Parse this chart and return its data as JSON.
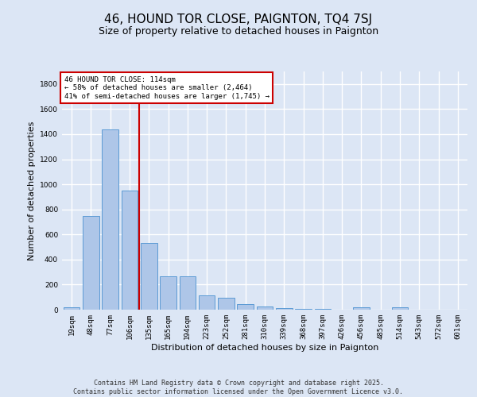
{
  "title": "46, HOUND TOR CLOSE, PAIGNTON, TQ4 7SJ",
  "subtitle": "Size of property relative to detached houses in Paignton",
  "xlabel": "Distribution of detached houses by size in Paignton",
  "ylabel": "Number of detached properties",
  "categories": [
    "19sqm",
    "48sqm",
    "77sqm",
    "106sqm",
    "135sqm",
    "165sqm",
    "194sqm",
    "223sqm",
    "252sqm",
    "281sqm",
    "310sqm",
    "339sqm",
    "368sqm",
    "397sqm",
    "426sqm",
    "456sqm",
    "485sqm",
    "514sqm",
    "543sqm",
    "572sqm",
    "601sqm"
  ],
  "values": [
    18,
    750,
    1440,
    950,
    535,
    268,
    268,
    115,
    97,
    47,
    28,
    12,
    5,
    5,
    0,
    18,
    0,
    18,
    0,
    0,
    0
  ],
  "bar_color": "#aec6e8",
  "bar_edge_color": "#5b9bd5",
  "vline_x_index": 3,
  "vline_color": "#cc0000",
  "annotation_text": "46 HOUND TOR CLOSE: 114sqm\n← 58% of detached houses are smaller (2,464)\n41% of semi-detached houses are larger (1,745) →",
  "annotation_box_color": "#ffffff",
  "annotation_box_edge_color": "#cc0000",
  "ylim": [
    0,
    1900
  ],
  "yticks": [
    0,
    200,
    400,
    600,
    800,
    1000,
    1200,
    1400,
    1600,
    1800
  ],
  "background_color": "#dce6f5",
  "grid_color": "#ffffff",
  "fig_background_color": "#dce6f5",
  "footer_text": "Contains HM Land Registry data © Crown copyright and database right 2025.\nContains public sector information licensed under the Open Government Licence v3.0.",
  "title_fontsize": 11,
  "subtitle_fontsize": 9,
  "label_fontsize": 8,
  "tick_fontsize": 6.5,
  "footer_fontsize": 6
}
